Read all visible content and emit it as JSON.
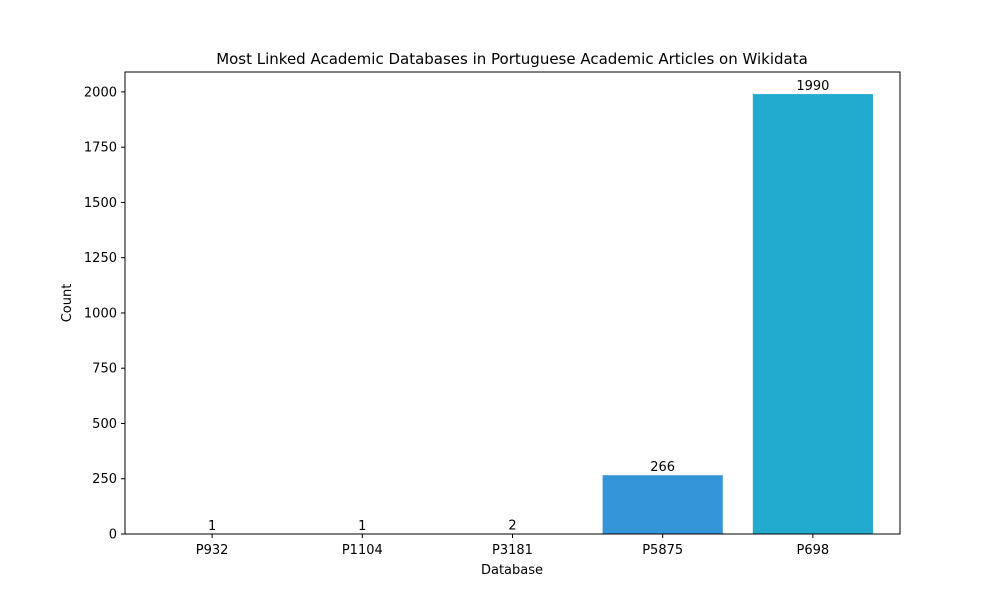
{
  "chart_data": {
    "type": "bar",
    "title": "Most Linked Academic Databases in Portuguese Academic Articles on Wikidata",
    "xlabel": "Database",
    "ylabel": "Count",
    "categories": [
      "P932",
      "P1104",
      "P3181",
      "P5875",
      "P698"
    ],
    "values": [
      1,
      1,
      2,
      266,
      1990
    ],
    "value_labels": [
      "1",
      "1",
      "2",
      "266",
      "1990"
    ],
    "ylim": [
      0,
      2090
    ],
    "yticks": [
      0,
      250,
      500,
      750,
      1000,
      1250,
      1500,
      1750,
      2000
    ],
    "ytick_labels": [
      "0",
      "250",
      "500",
      "750",
      "1000",
      "1250",
      "1500",
      "1750",
      "2000"
    ],
    "bar_colors": [
      "#a05be8",
      "#5b5be8",
      "#4a7fe0",
      "#3496d8",
      "#22aacf"
    ],
    "grid": false,
    "legend": "none"
  }
}
